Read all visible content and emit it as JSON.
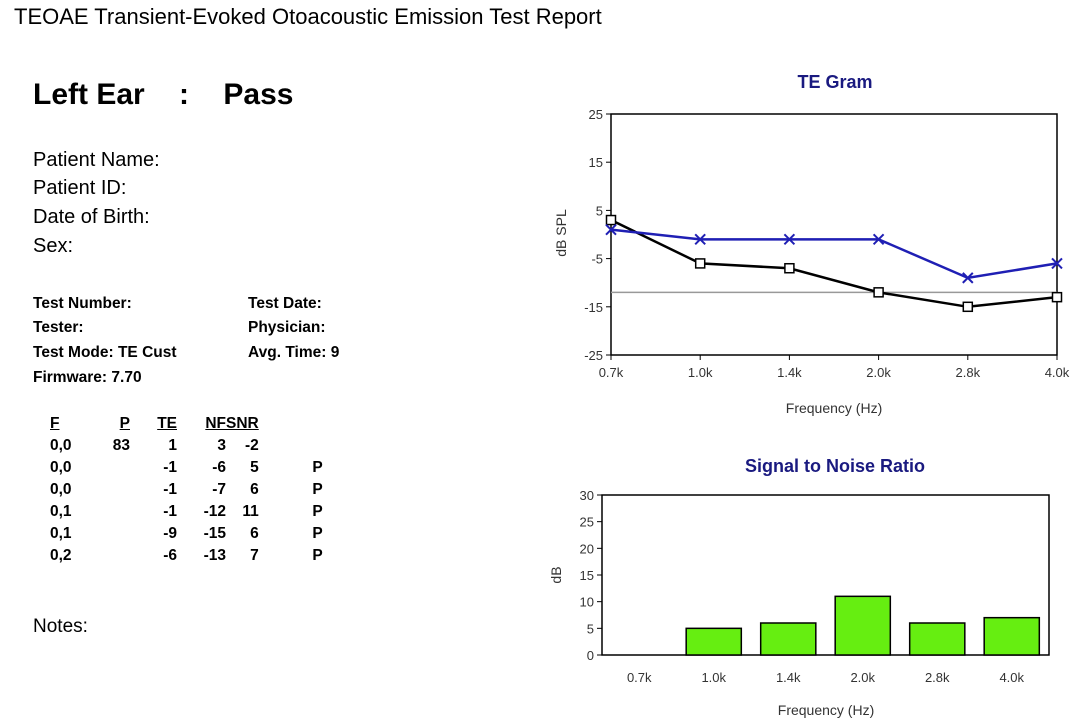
{
  "report_title": "TEOAE Transient-Evoked Otoacoustic Emission Test Report",
  "ear": {
    "side": "Left Ear",
    "separator": ":",
    "result": "Pass"
  },
  "patient": {
    "name_label": "Patient Name:",
    "id_label": "Patient ID:",
    "dob_label": "Date of Birth:",
    "sex_label": "Sex:"
  },
  "test_info": {
    "test_number_label": "Test Number:",
    "tester_label": "Tester:",
    "test_mode_label": "Test Mode:",
    "test_mode_value": "TE Cust",
    "firmware_label": "Firmware:",
    "firmware_value": "7.70",
    "test_date_label": "Test Date:",
    "physician_label": "Physician:",
    "avg_time_label": "Avg. Time:",
    "avg_time_value": "9"
  },
  "results_table": {
    "headers": [
      "F",
      "P",
      "TE",
      "NF",
      "SNR",
      ""
    ],
    "rows": [
      [
        "0,0",
        "83",
        "1",
        "3",
        "-2",
        ""
      ],
      [
        "0,0",
        "",
        "-1",
        "-6",
        "5",
        "P"
      ],
      [
        "0,0",
        "",
        "-1",
        "-7",
        "6",
        "P"
      ],
      [
        "0,1",
        "",
        "-1",
        "-12",
        "11",
        "P"
      ],
      [
        "0,1",
        "",
        "-9",
        "-15",
        "6",
        "P"
      ],
      [
        "0,2",
        "",
        "-6",
        "-13",
        "7",
        "P"
      ]
    ]
  },
  "notes_label": "Notes:",
  "colors": {
    "te_line": "#1f1fb4",
    "nf_line": "#000000",
    "snr_bar": "#66ee11",
    "title": "#1a1a80",
    "ref_line": "#999999"
  },
  "chart_data": [
    {
      "type": "line",
      "title": "TE Gram",
      "xlabel": "Frequency (Hz)",
      "ylabel": "dB SPL",
      "categories": [
        "0.7k",
        "1.0k",
        "1.4k",
        "2.0k",
        "2.8k",
        "4.0k"
      ],
      "yticks": [
        "25",
        "15",
        "5",
        "-5",
        "-15",
        "-25"
      ],
      "ylim": [
        -25,
        25
      ],
      "grid": false,
      "reference_line": -12,
      "series": [
        {
          "marker": "x",
          "values": [
            1,
            -1,
            -1,
            -1,
            -9,
            -6
          ]
        },
        {
          "marker": "square",
          "values": [
            3,
            -6,
            -7,
            -12,
            -15,
            -13
          ]
        }
      ]
    },
    {
      "type": "bar",
      "title": "Signal to Noise Ratio",
      "xlabel": "Frequency (Hz)",
      "ylabel": "dB",
      "categories": [
        "0.7k",
        "1.0k",
        "1.4k",
        "2.0k",
        "2.8k",
        "4.0k"
      ],
      "yticks": [
        "30",
        "25",
        "20",
        "15",
        "10",
        "5",
        "0"
      ],
      "ylim": [
        0,
        30
      ],
      "grid": false,
      "values": [
        null,
        5,
        6,
        11,
        6,
        7
      ]
    }
  ]
}
